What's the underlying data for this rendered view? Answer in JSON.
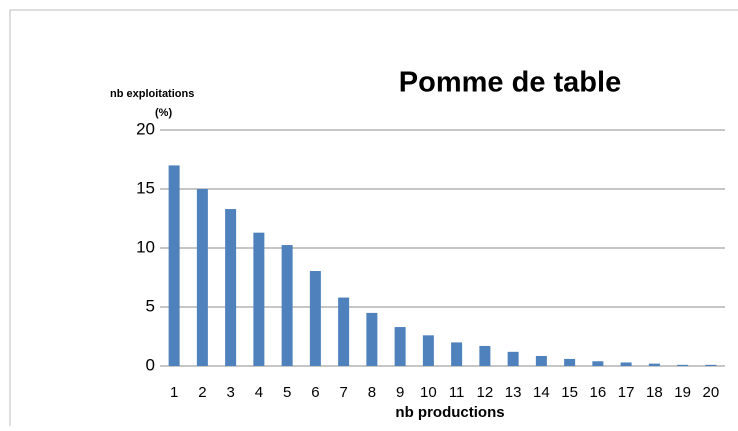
{
  "chart_data": {
    "type": "bar",
    "title": "Pomme de table",
    "y_label": [
      "nb exploitations",
      "(%)"
    ],
    "x_label": "nb productions",
    "categories": [
      "1",
      "2",
      "3",
      "4",
      "5",
      "6",
      "7",
      "8",
      "9",
      "10",
      "11",
      "12",
      "13",
      "14",
      "15",
      "16",
      "17",
      "18",
      "19",
      "20"
    ],
    "values": [
      17.0,
      15.0,
      13.3,
      11.3,
      10.25,
      8.05,
      5.8,
      4.5,
      3.3,
      2.6,
      2.0,
      1.7,
      1.2,
      0.85,
      0.6,
      0.4,
      0.3,
      0.2,
      0.1,
      0.1
    ],
    "color": "#4f81bd",
    "ylim": [
      0,
      20
    ],
    "yticks": [
      0,
      5,
      10,
      15,
      20
    ],
    "grid": true
  }
}
